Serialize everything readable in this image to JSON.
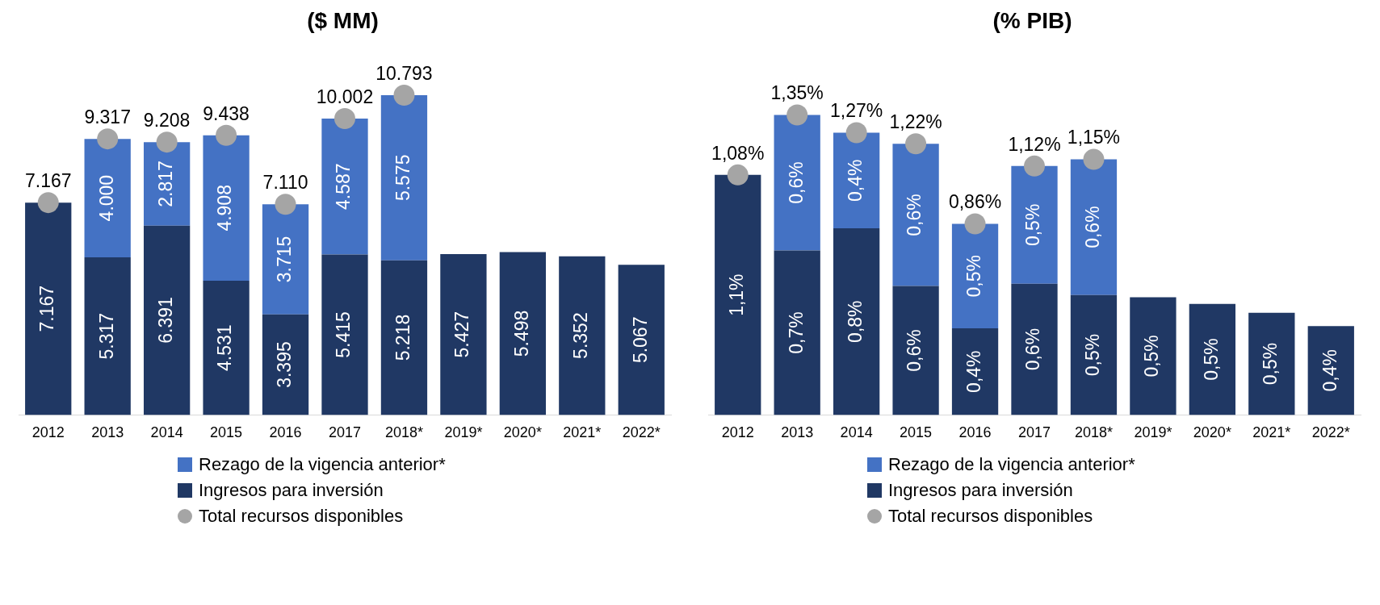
{
  "chart_data": [
    {
      "type": "bar",
      "title": "($ MM)",
      "stacked": true,
      "legend": "bottom",
      "grid": false,
      "tick_labels": "x",
      "marker": "circle",
      "categories": [
        "2012",
        "2013",
        "2014",
        "2015",
        "2016",
        "2017",
        "2018*",
        "2019*",
        "2020*",
        "2021*",
        "2022*"
      ],
      "series": [
        {
          "name": "Ingresos para inversión",
          "color": "#203864",
          "values": [
            7167,
            5317,
            6391,
            4531,
            3395,
            5415,
            5218,
            5427,
            5498,
            5352,
            5067
          ],
          "value_labels": [
            "7.167",
            "5.317",
            "6.391",
            "4.531",
            "3.395",
            "5.415",
            "5.218",
            "5.427",
            "5.498",
            "5.352",
            "5.067"
          ]
        },
        {
          "name": "Rezago de la vigencia anterior*",
          "color": "#4472c4",
          "values": [
            null,
            4000,
            2817,
            4908,
            3715,
            4587,
            5575,
            null,
            null,
            null,
            null
          ],
          "value_labels": [
            null,
            "4.000",
            "2.817",
            "4.908",
            "3.715",
            "4.587",
            "5.575",
            null,
            null,
            null,
            null
          ]
        },
        {
          "name": "Total recursos disponibles",
          "type": "scatter",
          "color": "#a5a5a5",
          "values": [
            7167,
            9317,
            9208,
            9438,
            7110,
            10002,
            10793,
            null,
            null,
            null,
            null
          ],
          "value_labels": [
            "7.167",
            "9.317",
            "9.208",
            "9.438",
            "7.110",
            "10.002",
            "10.793",
            null,
            null,
            null,
            null
          ]
        }
      ]
    },
    {
      "type": "bar",
      "title": "(% PIB)",
      "stacked": true,
      "legend": "bottom",
      "grid": false,
      "tick_labels": "x",
      "marker": "circle",
      "categories": [
        "2012",
        "2013",
        "2014",
        "2015",
        "2016",
        "2017",
        "2018*",
        "2019*",
        "2020*",
        "2021*",
        "2022*"
      ],
      "series": [
        {
          "name": "Ingresos para inversión",
          "color": "#203864",
          "values": [
            1.08,
            0.74,
            0.84,
            0.58,
            0.39,
            0.59,
            0.54,
            0.53,
            0.5,
            0.46,
            0.4
          ],
          "value_labels": [
            "1,1%",
            "0,7%",
            "0,8%",
            "0,6%",
            "0,4%",
            "0,6%",
            "0,5%",
            "0,5%",
            "0,5%",
            "0,5%",
            "0,4%"
          ]
        },
        {
          "name": "Rezago de la vigencia anterior*",
          "color": "#4472c4",
          "values": [
            null,
            0.61,
            0.43,
            0.64,
            0.47,
            0.53,
            0.61,
            null,
            null,
            null,
            null
          ],
          "value_labels": [
            null,
            "0,6%",
            "0,4%",
            "0,6%",
            "0,5%",
            "0,5%",
            "0,6%",
            null,
            null,
            null,
            null
          ]
        },
        {
          "name": "Total recursos disponibles",
          "type": "scatter",
          "color": "#a5a5a5",
          "values": [
            1.08,
            1.35,
            1.27,
            1.22,
            0.86,
            1.12,
            1.15,
            null,
            null,
            null,
            null
          ],
          "value_labels": [
            "1,08%",
            "1,35%",
            "1,27%",
            "1,22%",
            "0,86%",
            "1,12%",
            "1,15%",
            null,
            null,
            null,
            null
          ]
        }
      ]
    }
  ]
}
